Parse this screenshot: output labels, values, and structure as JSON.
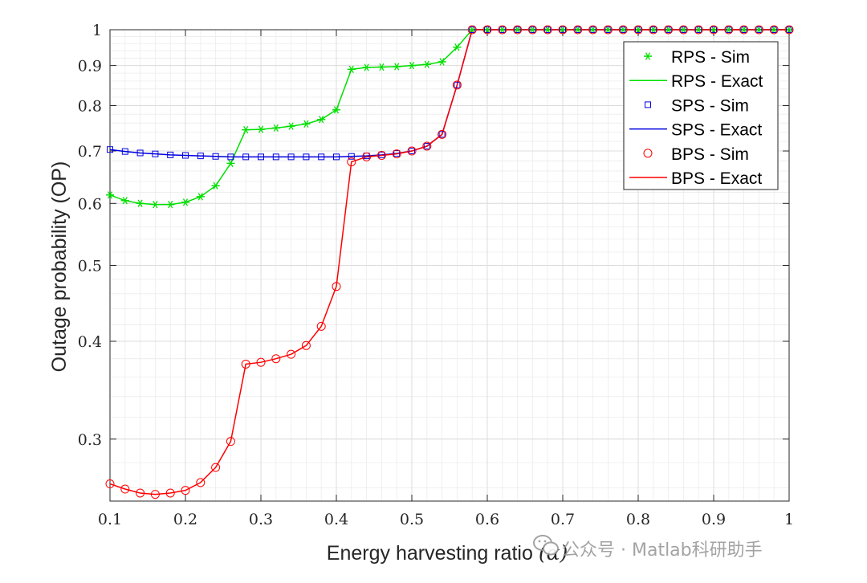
{
  "chart_data": {
    "type": "line",
    "xlabel": "Energy harvesting ratio",
    "xlabel_symbol": "(α)",
    "ylabel": "Outage probability (OP)",
    "xlim": [
      0.1,
      1.0
    ],
    "ylim": [
      0.25,
      1.0
    ],
    "yscale": "log",
    "grid": true,
    "legend_position": "top-right",
    "xticks": [
      0.1,
      0.2,
      0.3,
      0.4,
      0.5,
      0.6,
      0.7,
      0.8,
      0.9,
      1.0
    ],
    "xtick_labels": [
      "0.1",
      "0.2",
      "0.3",
      "0.4",
      "0.5",
      "0.6",
      "0.7",
      "0.8",
      "0.9",
      "1"
    ],
    "yticks": [
      0.3,
      0.4,
      0.5,
      0.6,
      0.7,
      0.8,
      0.9,
      1.0
    ],
    "ytick_labels": [
      "0.3",
      "0.4",
      "0.5",
      "0.6",
      "0.7",
      "0.8",
      "0.9",
      "1"
    ],
    "x": [
      0.1,
      0.12,
      0.14,
      0.16,
      0.18,
      0.2,
      0.22,
      0.24,
      0.26,
      0.28,
      0.3,
      0.32,
      0.34,
      0.36,
      0.38,
      0.4,
      0.42,
      0.44,
      0.46,
      0.48,
      0.5,
      0.52,
      0.54,
      0.56,
      0.58,
      0.6,
      0.62,
      0.64,
      0.66,
      0.68,
      0.7,
      0.72,
      0.74,
      0.76,
      0.78,
      0.8,
      0.82,
      0.84,
      0.86,
      0.88,
      0.9,
      0.92,
      0.94,
      0.96,
      0.98,
      1.0
    ],
    "series": [
      {
        "name": "RPS",
        "sim_label": "RPS - Sim",
        "exact_label": "RPS - Exact",
        "color": "#00e000",
        "marker": "asterisk",
        "sim_step": 1,
        "values": [
          0.615,
          0.605,
          0.6,
          0.598,
          0.598,
          0.602,
          0.612,
          0.632,
          0.675,
          0.745,
          0.746,
          0.749,
          0.753,
          0.758,
          0.768,
          0.79,
          0.89,
          0.895,
          0.896,
          0.897,
          0.9,
          0.903,
          0.91,
          0.95,
          1.0,
          1.0,
          1.0,
          1.0,
          1.0,
          1.0,
          1.0,
          1.0,
          1.0,
          1.0,
          1.0,
          1.0,
          1.0,
          1.0,
          1.0,
          1.0,
          1.0,
          1.0,
          1.0,
          1.0,
          1.0,
          1.0
        ]
      },
      {
        "name": "SPS",
        "sim_label": "SPS - Sim",
        "exact_label": "SPS - Exact",
        "color": "#0000e0",
        "marker": "square",
        "sim_step": 1,
        "values": [
          0.703,
          0.699,
          0.696,
          0.694,
          0.692,
          0.691,
          0.69,
          0.689,
          0.688,
          0.688,
          0.688,
          0.688,
          0.688,
          0.688,
          0.688,
          0.688,
          0.689,
          0.69,
          0.692,
          0.695,
          0.7,
          0.71,
          0.735,
          0.85,
          1.0,
          1.0,
          1.0,
          1.0,
          1.0,
          1.0,
          1.0,
          1.0,
          1.0,
          1.0,
          1.0,
          1.0,
          1.0,
          1.0,
          1.0,
          1.0,
          1.0,
          1.0,
          1.0,
          1.0,
          1.0,
          1.0
        ]
      },
      {
        "name": "BPS",
        "sim_label": "BPS - Sim",
        "exact_label": "BPS - Exact",
        "color": "#ff0000",
        "marker": "circle",
        "sim_step": 1,
        "values": [
          0.263,
          0.259,
          0.256,
          0.255,
          0.256,
          0.258,
          0.264,
          0.276,
          0.298,
          0.374,
          0.376,
          0.38,
          0.385,
          0.395,
          0.418,
          0.47,
          0.678,
          0.688,
          0.691,
          0.694,
          0.7,
          0.71,
          0.735,
          0.85,
          1.0,
          1.0,
          1.0,
          1.0,
          1.0,
          1.0,
          1.0,
          1.0,
          1.0,
          1.0,
          1.0,
          1.0,
          1.0,
          1.0,
          1.0,
          1.0,
          1.0,
          1.0,
          1.0,
          1.0,
          1.0,
          1.0
        ]
      }
    ]
  },
  "watermark": {
    "text": "公众号 · Matlab科研助手"
  }
}
